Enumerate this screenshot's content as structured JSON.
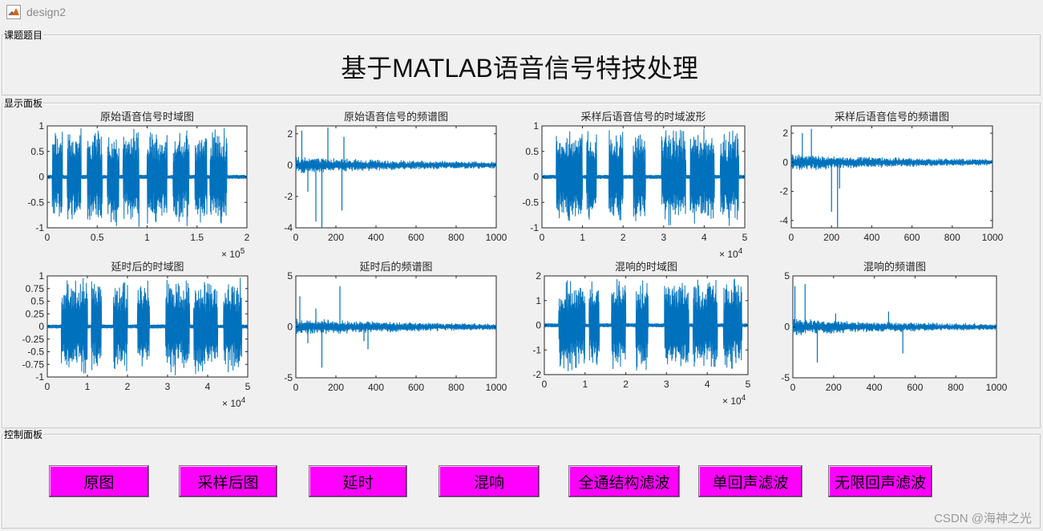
{
  "window": {
    "title": "design2",
    "icon": "matlab-icon"
  },
  "panels": {
    "topic": "课题题目",
    "display": "显示面板",
    "control": "控制面板"
  },
  "main_title": "基于MATLAB语音信号特技处理",
  "buttons": [
    {
      "label": "原图"
    },
    {
      "label": "采样后图"
    },
    {
      "label": "延时"
    },
    {
      "label": "混响"
    },
    {
      "label": "全通结构滤波"
    },
    {
      "label": "单回声滤波"
    },
    {
      "label": "无限回声滤波"
    }
  ],
  "watermark": "CSDN @海神之光",
  "colors": {
    "accent": "#0072bd",
    "button": "#ff00ff"
  },
  "chart_data": [
    {
      "type": "line",
      "title": "原始语音信号时域图",
      "xlim": [
        0,
        200000
      ],
      "ylim": [
        -1,
        1
      ],
      "xticks": [
        "0",
        "0.5",
        "1",
        "1.5",
        "2"
      ],
      "yticks": [
        "1",
        "0.5",
        "0",
        "-0.5",
        "-1"
      ],
      "exponent": "5",
      "bursts": [
        [
          5000,
          15000
        ],
        [
          20000,
          34000
        ],
        [
          40000,
          55000
        ],
        [
          60000,
          72000
        ],
        [
          76000,
          92000
        ],
        [
          100000,
          120000
        ],
        [
          126000,
          142000
        ],
        [
          148000,
          160000
        ],
        [
          163000,
          180000
        ]
      ]
    },
    {
      "type": "line",
      "title": "原始语音信号的频谱图",
      "xlim": [
        0,
        1000
      ],
      "ylim": [
        -4,
        2.5
      ],
      "xticks": [
        "0",
        "200",
        "400",
        "600",
        "800",
        "1000"
      ],
      "yticks": [
        "2",
        "0",
        "-2",
        "-4"
      ],
      "exponent": "",
      "spikes": [
        [
          100,
          -3.6
        ],
        [
          130,
          -4
        ],
        [
          230,
          -2.9
        ],
        [
          30,
          2.2
        ],
        [
          160,
          2.4
        ],
        [
          240,
          1.8
        ],
        [
          60,
          -1.7
        ]
      ]
    },
    {
      "type": "line",
      "title": "采样后语音信号的时域波形",
      "xlim": [
        0,
        50000
      ],
      "ylim": [
        -1,
        1
      ],
      "xticks": [
        "0",
        "1",
        "2",
        "3",
        "4",
        "5"
      ],
      "yticks": [
        "1",
        "0.5",
        "0",
        "-0.5",
        "-1"
      ],
      "exponent": "4",
      "bursts": [
        [
          3500,
          10000
        ],
        [
          11000,
          13500
        ],
        [
          16500,
          20000
        ],
        [
          22500,
          25500
        ],
        [
          29500,
          35500
        ],
        [
          36500,
          42500
        ],
        [
          44000,
          48500
        ]
      ]
    },
    {
      "type": "line",
      "title": "采样后语音信号的频谱图",
      "xlim": [
        0,
        1000
      ],
      "ylim": [
        -4.5,
        2.5
      ],
      "xticks": [
        "0",
        "200",
        "400",
        "600",
        "800",
        "1000"
      ],
      "yticks": [
        "2",
        "0",
        "-2",
        "-4"
      ],
      "exponent": "",
      "spikes": [
        [
          200,
          -3.4
        ],
        [
          230,
          -4.5
        ],
        [
          100,
          2.3
        ],
        [
          55,
          2
        ],
        [
          240,
          -1.8
        ]
      ]
    },
    {
      "type": "line",
      "title": "延时后的时域图",
      "xlim": [
        0,
        50000
      ],
      "ylim": [
        -1,
        1
      ],
      "xticks": [
        "0",
        "1",
        "2",
        "3",
        "4",
        "5"
      ],
      "yticks": [
        "1",
        "0.75",
        "0.5",
        "0.25",
        "0",
        "-0.25",
        "-0.5",
        "-0.75",
        "-1"
      ],
      "exponent": "4",
      "bursts": [
        [
          3500,
          10000
        ],
        [
          11000,
          13500
        ],
        [
          16500,
          20000
        ],
        [
          22500,
          25500
        ],
        [
          29500,
          35500
        ],
        [
          36500,
          42500
        ],
        [
          44000,
          48500
        ]
      ]
    },
    {
      "type": "line",
      "title": "延时后的频谱图",
      "xlim": [
        0,
        1000
      ],
      "ylim": [
        -5,
        5
      ],
      "xticks": [
        "0",
        "200",
        "400",
        "600",
        "800",
        "1000"
      ],
      "yticks": [
        "5",
        "0",
        "-5"
      ],
      "exponent": "",
      "spikes": [
        [
          130,
          -4
        ],
        [
          220,
          4
        ],
        [
          20,
          3
        ],
        [
          60,
          -1.6
        ],
        [
          360,
          -2.2
        ],
        [
          340,
          -1.4
        ],
        [
          100,
          1.8
        ]
      ]
    },
    {
      "type": "line",
      "title": "混响的时域图",
      "xlim": [
        0,
        50000
      ],
      "ylim": [
        -2,
        2
      ],
      "xticks": [
        "0",
        "1",
        "2",
        "3",
        "4",
        "5"
      ],
      "yticks": [
        "2",
        "1",
        "0",
        "-1",
        "-2"
      ],
      "exponent": "4",
      "bursts": [
        [
          3500,
          10000
        ],
        [
          11000,
          13500
        ],
        [
          16500,
          20000
        ],
        [
          22500,
          25500
        ],
        [
          29500,
          35500
        ],
        [
          36500,
          42500
        ],
        [
          44000,
          48500
        ]
      ]
    },
    {
      "type": "line",
      "title": "混响的频谱图",
      "xlim": [
        0,
        1000
      ],
      "ylim": [
        -5,
        5
      ],
      "xticks": [
        "0",
        "200",
        "400",
        "600",
        "800",
        "1000"
      ],
      "yticks": [
        "5",
        "0",
        "-5"
      ],
      "exponent": "",
      "spikes": [
        [
          10,
          4
        ],
        [
          60,
          4.2
        ],
        [
          120,
          -3.5
        ],
        [
          540,
          -2.6
        ],
        [
          470,
          1.5
        ],
        [
          210,
          1.3
        ]
      ]
    }
  ]
}
